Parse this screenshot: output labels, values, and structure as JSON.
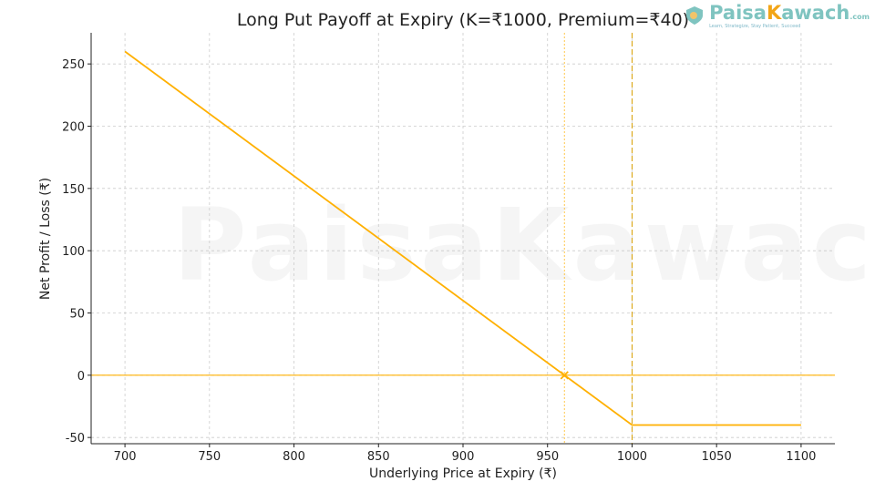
{
  "chart_data": {
    "type": "line",
    "title": "Long Put Payoff at Expiry (K=₹1000, Premium=₹40)",
    "xlabel": "Underlying Price at Expiry (₹)",
    "ylabel": "Net Profit / Loss (₹)",
    "xlim": [
      680,
      1120
    ],
    "ylim": [
      -55,
      275
    ],
    "xticks": [
      700,
      750,
      800,
      850,
      900,
      950,
      1000,
      1050,
      1100
    ],
    "yticks": [
      -50,
      0,
      50,
      100,
      150,
      200,
      250
    ],
    "grid": true,
    "series": [
      {
        "x": [
          700,
          1000,
          1100
        ],
        "y": [
          260,
          -40,
          -40
        ],
        "color": "#ffb000"
      }
    ],
    "reference_lines": {
      "zero_line": {
        "y": 0,
        "color": "#ffb000"
      },
      "strike": {
        "x": 1000,
        "color": "#d9a000",
        "style": "dashed"
      },
      "breakeven": {
        "x": 960,
        "color": "#ffb000",
        "style": "dotted"
      }
    },
    "breakeven_marker": {
      "x": 960,
      "y": 0,
      "marker": "x"
    }
  },
  "logo": {
    "name_part1": "Paisa",
    "name_part2": "K",
    "name_part3": "awach",
    "suffix": ".com",
    "tagline": "Learn, Strategize, Stay Patient, Succeed"
  },
  "icons": {
    "logo_icon": "shield-lock-icon"
  }
}
